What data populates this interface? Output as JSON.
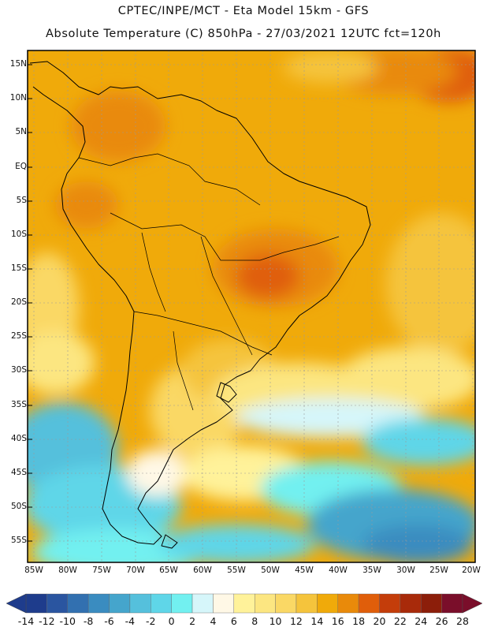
{
  "header": {
    "line1": "CPTEC/INPE/MCT -  Eta Model 15km - GFS",
    "line2": "Absolute Temperature (C) 850hPa - 27/03/2021 12UTC fct=120h"
  },
  "map": {
    "lat_labels": [
      "15N",
      "10N",
      "5N",
      "EQ",
      "5S",
      "10S",
      "15S",
      "20S",
      "25S",
      "30S",
      "35S",
      "40S",
      "45S",
      "50S",
      "55S"
    ],
    "lon_labels": [
      "85W",
      "80W",
      "75W",
      "70W",
      "65W",
      "60W",
      "55W",
      "50W",
      "45W",
      "40W",
      "35W",
      "30W",
      "25W",
      "20W"
    ],
    "lat_range": [
      -58,
      16.5
    ],
    "lon_range": [
      -86,
      -20
    ],
    "grid": true
  },
  "colorbar": {
    "labels": [
      "-14",
      "-12",
      "-10",
      "-8",
      "-6",
      "-4",
      "-2",
      "0",
      "2",
      "4",
      "6",
      "8",
      "10",
      "12",
      "14",
      "16",
      "18",
      "20",
      "22",
      "24",
      "26",
      "28"
    ],
    "colors": [
      "#1e3c8c",
      "#2a55a0",
      "#3270b0",
      "#3a8cc0",
      "#45a5cc",
      "#55c0dc",
      "#5fd6e8",
      "#72f0f0",
      "#d6f6fa",
      "#fff8e6",
      "#fff29a",
      "#fce681",
      "#fad865",
      "#f5c43c",
      "#f0aa0a",
      "#e98a0a",
      "#e05e0a",
      "#c43d0a",
      "#a82a0a",
      "#8c1e0a",
      "#7a0e2a"
    ]
  }
}
